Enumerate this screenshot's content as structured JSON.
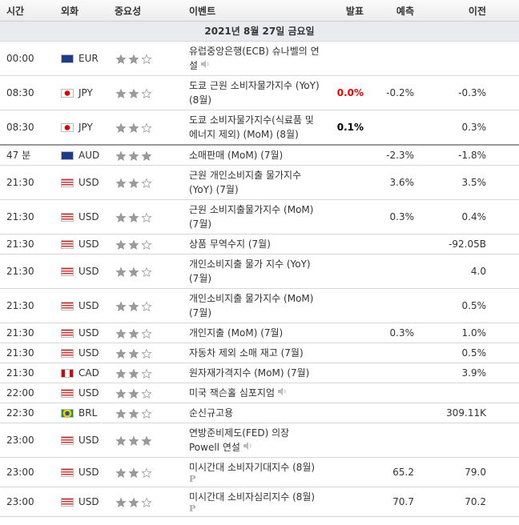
{
  "header": {
    "time": "시간",
    "currency": "외화",
    "importance": "중요성",
    "event": "이벤트",
    "actual": "발표",
    "forecast": "예측",
    "previous": "이전"
  },
  "date": "2021년 8월 27일 금요일",
  "rows": [
    {
      "time": "00:00",
      "currency": "EUR",
      "importance": 2,
      "event": "유럽중앙은행(ECB) 슈나벨의 연설",
      "speech": true
    },
    {
      "time": "08:30",
      "currency": "JPY",
      "importance": 2,
      "event": "도쿄 근원 소비자물가지수 (YoY) (8월)",
      "actual": "0.0%",
      "actual_color": "red",
      "forecast": "-0.2%",
      "previous": "-0.3%"
    },
    {
      "time": "08:30",
      "currency": "JPY",
      "importance": 2,
      "event": "도쿄 소비자물가지수(식료품 및 에너지 제외) (MoM) (8월)",
      "actual": "0.1%",
      "actual_color": "black",
      "previous": "0.3%"
    },
    {
      "time": "47 분",
      "currency": "AUD",
      "importance": 3,
      "event": "소매판매 (MoM) (7월)",
      "forecast": "-2.3%",
      "previous": "-1.8%",
      "current": true
    },
    {
      "time": "21:30",
      "currency": "USD",
      "importance": 2,
      "event": "근원 개인소비지출 물가지수 (YoY) (7월)",
      "forecast": "3.6%",
      "previous": "3.5%"
    },
    {
      "time": "21:30",
      "currency": "USD",
      "importance": 2,
      "event": "근원 소비지출물가지수 (MoM) (7월)",
      "forecast": "0.3%",
      "previous": "0.4%"
    },
    {
      "time": "21:30",
      "currency": "USD",
      "importance": 2,
      "event": "상품 무역수지 (7월)",
      "previous": "-92.05B"
    },
    {
      "time": "21:30",
      "currency": "USD",
      "importance": 2,
      "event": "개인소비지출 물가 지수 (YoY) (7월)",
      "previous": "4.0"
    },
    {
      "time": "21:30",
      "currency": "USD",
      "importance": 2,
      "event": "개인소비지출 물가지수 (MoM) (7월)",
      "previous": "0.5%"
    },
    {
      "time": "21:30",
      "currency": "USD",
      "importance": 2,
      "event": "개인지출 (MoM) (7월)",
      "forecast": "0.3%",
      "previous": "1.0%"
    },
    {
      "time": "21:30",
      "currency": "USD",
      "importance": 2,
      "event": "자동차 제외 소매 재고 (7월)",
      "previous": "0.5%"
    },
    {
      "time": "21:30",
      "currency": "CAD",
      "importance": 2,
      "event": "원자재가격지수 (MoM) (7월)",
      "previous": "3.9%"
    },
    {
      "time": "22:00",
      "currency": "USD",
      "importance": 2,
      "event": "미국 잭슨홀 심포지엄",
      "speech": true
    },
    {
      "time": "22:30",
      "currency": "BRL",
      "importance": 2,
      "event": "순신규고용",
      "previous": "309.11K"
    },
    {
      "time": "23:00",
      "currency": "USD",
      "importance": 3,
      "event": "연방준비제도(FED) 의장 Powell 연설",
      "speech": true
    },
    {
      "time": "23:00",
      "currency": "USD",
      "importance": 2,
      "event": "미시간대 소비자기대지수 (8월)",
      "icon": "P",
      "forecast": "65.2",
      "previous": "79.0"
    },
    {
      "time": "23:00",
      "currency": "USD",
      "importance": 2,
      "event": "미시간대 소비자심리지수 (8월)",
      "icon": "P",
      "forecast": "70.7",
      "previous": "70.2"
    }
  ]
}
